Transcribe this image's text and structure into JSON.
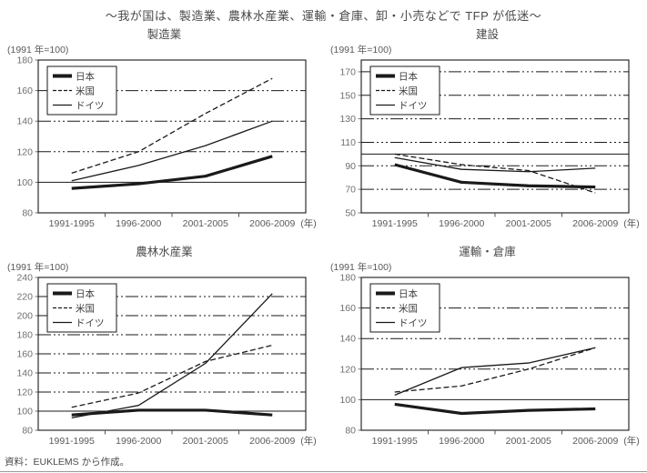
{
  "page": {
    "title": "～我が国は、製造業、農林水産業、運輸・倉庫、卸・小売などで TFP が低迷～",
    "source": "資料：EUKLEMS から作成。",
    "colors": {
      "line": "#1a1a1a",
      "title_text": "#4a4a4a",
      "tick_text": "#6e6e6e",
      "axis": "#1a1a1a"
    }
  },
  "chart_data": [
    {
      "type": "line",
      "title": "製造業",
      "unit_label": "(1991 年=100)",
      "categories": [
        "1991-1995",
        "1996-2000",
        "2001-2005",
        "2006-2009"
      ],
      "x_suffix": "(年)",
      "ylim": [
        80,
        180
      ],
      "yticks": [
        80,
        100,
        120,
        140,
        160,
        180
      ],
      "refline": 100,
      "grid": "dashed-horizontal",
      "legend_position": "top-left",
      "series": [
        {
          "name": "日本",
          "line_style": "thick",
          "values": [
            96,
            99,
            104,
            117
          ]
        },
        {
          "name": "米国",
          "line_style": "dashed",
          "values": [
            106,
            120,
            145,
            168
          ]
        },
        {
          "name": "ドイツ",
          "line_style": "thin",
          "values": [
            101,
            111,
            124,
            140
          ]
        }
      ]
    },
    {
      "type": "line",
      "title": "建設",
      "unit_label": "(1991 年=100)",
      "categories": [
        "1991-1995",
        "1996-2000",
        "2001-2005",
        "2006-2009"
      ],
      "x_suffix": "(年)",
      "ylim": [
        50,
        180
      ],
      "yticks": [
        50,
        70,
        90,
        110,
        130,
        150,
        170
      ],
      "refline": 100,
      "grid": "dashed-horizontal",
      "legend_position": "top-left",
      "series": [
        {
          "name": "日本",
          "line_style": "thick",
          "values": [
            91,
            76,
            73,
            72
          ]
        },
        {
          "name": "米国",
          "line_style": "dashed",
          "values": [
            100,
            91,
            86,
            67
          ]
        },
        {
          "name": "ドイツ",
          "line_style": "thin",
          "values": [
            97,
            87,
            85,
            88
          ]
        }
      ]
    },
    {
      "type": "line",
      "title": "農林水産業",
      "unit_label": "(1991 年=100)",
      "categories": [
        "1991-1995",
        "1996-2000",
        "2001-2005",
        "2006-2009"
      ],
      "x_suffix": "(年)",
      "ylim": [
        80,
        240
      ],
      "yticks": [
        80,
        100,
        120,
        140,
        160,
        180,
        200,
        220,
        240
      ],
      "refline": 100,
      "grid": "dashed-horizontal",
      "legend_position": "top-left",
      "series": [
        {
          "name": "日本",
          "line_style": "thick",
          "values": [
            96,
            101,
            101,
            96
          ]
        },
        {
          "name": "米国",
          "line_style": "dashed",
          "values": [
            104,
            119,
            152,
            169
          ]
        },
        {
          "name": "ドイツ",
          "line_style": "thin",
          "values": [
            93,
            106,
            150,
            223
          ]
        }
      ]
    },
    {
      "type": "line",
      "title": "運輸・倉庫",
      "unit_label": "(1991 年=100)",
      "categories": [
        "1991-1995",
        "1996-2000",
        "2001-2005",
        "2006-2009"
      ],
      "x_suffix": "(年)",
      "ylim": [
        80,
        180
      ],
      "yticks": [
        80,
        100,
        120,
        140,
        160,
        180
      ],
      "refline": 100,
      "grid": "dashed-horizontal",
      "legend_position": "top-left",
      "series": [
        {
          "name": "日本",
          "line_style": "thick",
          "values": [
            97,
            91,
            93,
            94
          ]
        },
        {
          "name": "米国",
          "line_style": "dashed",
          "values": [
            105,
            109,
            120,
            134
          ]
        },
        {
          "name": "ドイツ",
          "line_style": "thin",
          "values": [
            103,
            121,
            124,
            134
          ]
        }
      ]
    }
  ]
}
